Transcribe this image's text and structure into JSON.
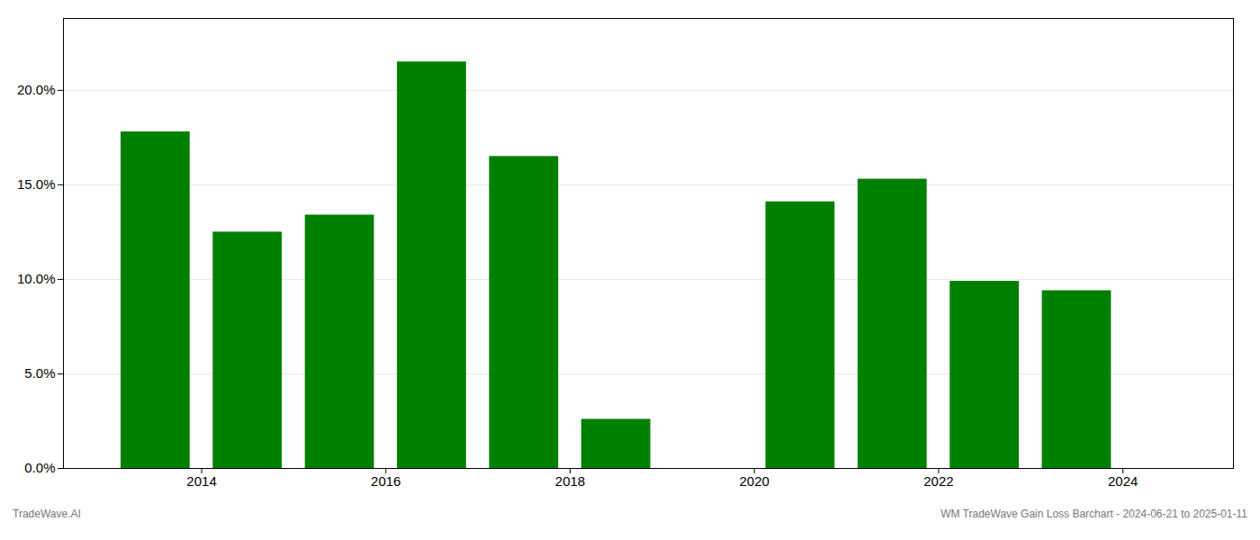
{
  "chart_data": {
    "type": "bar",
    "x": [
      2013.5,
      2014.5,
      2015.5,
      2016.5,
      2017.5,
      2018.5,
      2020.5,
      2021.5,
      2022.5,
      2023.5
    ],
    "values": [
      0.178,
      0.125,
      0.134,
      0.215,
      0.165,
      0.026,
      0.141,
      0.153,
      0.099,
      0.094
    ],
    "color": "#008000",
    "xlim": [
      2012.5,
      2025.2
    ],
    "xticks": [
      2014,
      2016,
      2018,
      2020,
      2022,
      2024
    ],
    "ylim": [
      0.0,
      0.238
    ],
    "yticks": [
      {
        "value": 0.0,
        "label": "0.0%"
      },
      {
        "value": 0.05,
        "label": "5.0%"
      },
      {
        "value": 0.1,
        "label": "10.0%"
      },
      {
        "value": 0.15,
        "label": "15.0%"
      },
      {
        "value": 0.2,
        "label": "20.0%"
      }
    ],
    "grid": true,
    "annotations": [
      "TradeWave.AI",
      "WM TradeWave Gain Loss Barchart - 2024-06-21 to 2025-01-11"
    ]
  }
}
